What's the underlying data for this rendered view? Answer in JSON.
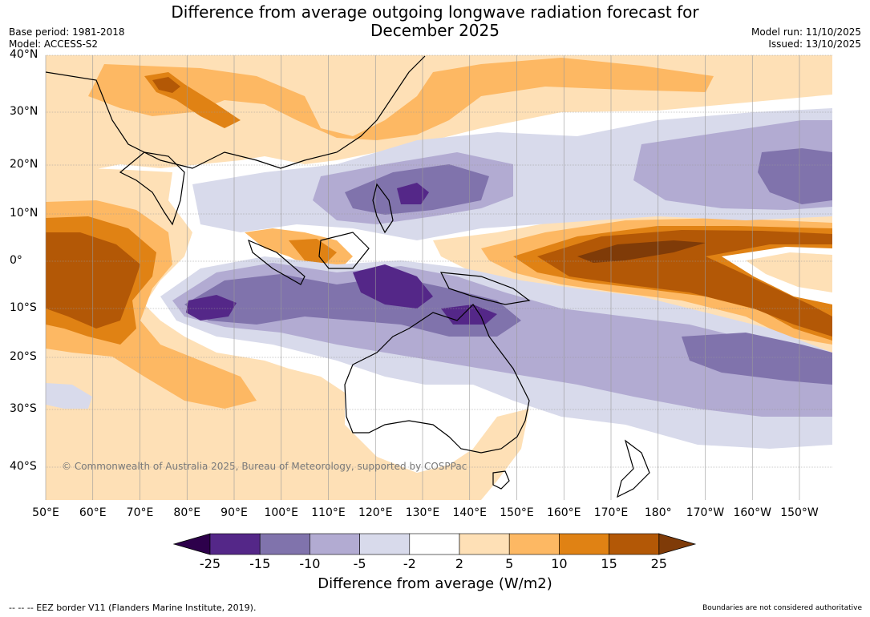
{
  "header": {
    "title_line1": "Difference from average outgoing longwave radiation forecast for",
    "title_line2": "December 2025",
    "base_period": "Base period: 1981-2018",
    "model": "Model: ACCESS-S2",
    "model_run": "Model run: 11/10/2025",
    "issued": "Issued: 13/10/2025"
  },
  "map": {
    "latitude_labels": [
      "40°N",
      "30°N",
      "20°N",
      "10°N",
      "0°",
      "10°S",
      "20°S",
      "30°S",
      "40°S"
    ],
    "longitude_labels": [
      "50°E",
      "60°E",
      "70°E",
      "80°E",
      "90°E",
      "100°E",
      "110°E",
      "120°E",
      "130°E",
      "140°E",
      "150°E",
      "160°E",
      "170°E",
      "180°",
      "170°W",
      "160°W",
      "150°W"
    ],
    "copyright": "© Commonwealth of Australia 2025, Bureau of Meteorology, supported by COSPPac"
  },
  "colorbar": {
    "title": "Difference from average (W/m2)",
    "ticks": [
      "-25",
      "-15",
      "-10",
      "-5",
      "-2",
      "2",
      "5",
      "10",
      "15",
      "25"
    ],
    "colors": [
      "#2d004b",
      "#542788",
      "#8073ac",
      "#b2abd2",
      "#d8daeb",
      "#ffffff",
      "#fee0b6",
      "#fdb863",
      "#e08214",
      "#b35806",
      "#7f3b08"
    ],
    "under_color": "#2d004b",
    "over_color": "#7f3b08"
  },
  "footer": {
    "eez_note": "--  --  -- EEZ border V11 (Flanders Marine Institute, 2019).",
    "boundaries_note": "Boundaries are not considered authoritative"
  }
}
